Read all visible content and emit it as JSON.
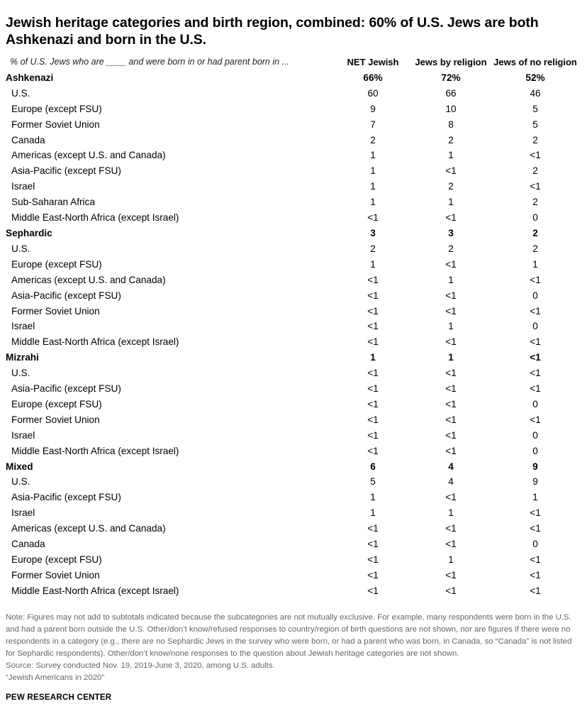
{
  "title": "Jewish heritage categories and birth region, combined: 60% of U.S. Jews are both Ashkenazi and born in the U.S.",
  "chart_data": {
    "type": "table",
    "stub_header": "% of U.S. Jews who are ____ and were born in or had parent born in ...",
    "columns": [
      "NET Jewish",
      "Jews by religion",
      "Jews of no religion"
    ],
    "groups": [
      {
        "name": "Ashkenazi",
        "values": [
          "66%",
          "72%",
          "52%"
        ],
        "rows": [
          {
            "label": "U.S.",
            "values": [
              "60",
              "66",
              "46"
            ]
          },
          {
            "label": "Europe (except FSU)",
            "values": [
              "9",
              "10",
              "5"
            ]
          },
          {
            "label": "Former Soviet Union",
            "values": [
              "7",
              "8",
              "5"
            ]
          },
          {
            "label": "Canada",
            "values": [
              "2",
              "2",
              "2"
            ]
          },
          {
            "label": "Americas (except U.S. and Canada)",
            "values": [
              "1",
              "1",
              "<1"
            ]
          },
          {
            "label": "Asia-Pacific (except FSU)",
            "values": [
              "1",
              "<1",
              "2"
            ]
          },
          {
            "label": "Israel",
            "values": [
              "1",
              "2",
              "<1"
            ]
          },
          {
            "label": "Sub-Saharan Africa",
            "values": [
              "1",
              "1",
              "2"
            ]
          },
          {
            "label": "Middle East-North Africa (except Israel)",
            "values": [
              "<1",
              "<1",
              "0"
            ]
          }
        ]
      },
      {
        "name": "Sephardic",
        "values": [
          "3",
          "3",
          "2"
        ],
        "rows": [
          {
            "label": "U.S.",
            "values": [
              "2",
              "2",
              "2"
            ]
          },
          {
            "label": "Europe (except FSU)",
            "values": [
              "1",
              "<1",
              "1"
            ]
          },
          {
            "label": "Americas (except U.S. and Canada)",
            "values": [
              "<1",
              "1",
              "<1"
            ]
          },
          {
            "label": "Asia-Pacific (except FSU)",
            "values": [
              "<1",
              "<1",
              "0"
            ]
          },
          {
            "label": "Former Soviet Union",
            "values": [
              "<1",
              "<1",
              "<1"
            ]
          },
          {
            "label": "Israel",
            "values": [
              "<1",
              "1",
              "0"
            ]
          },
          {
            "label": "Middle East-North Africa (except Israel)",
            "values": [
              "<1",
              "<1",
              "<1"
            ]
          }
        ]
      },
      {
        "name": "Mizrahi",
        "values": [
          "1",
          "1",
          "<1"
        ],
        "rows": [
          {
            "label": "U.S.",
            "values": [
              "<1",
              "<1",
              "<1"
            ]
          },
          {
            "label": "Asia-Pacific (except FSU)",
            "values": [
              "<1",
              "<1",
              "<1"
            ]
          },
          {
            "label": "Europe (except FSU)",
            "values": [
              "<1",
              "<1",
              "0"
            ]
          },
          {
            "label": "Former Soviet Union",
            "values": [
              "<1",
              "<1",
              "<1"
            ]
          },
          {
            "label": "Israel",
            "values": [
              "<1",
              "<1",
              "0"
            ]
          },
          {
            "label": "Middle East-North Africa (except Israel)",
            "values": [
              "<1",
              "<1",
              "0"
            ]
          }
        ]
      },
      {
        "name": "Mixed",
        "values": [
          "6",
          "4",
          "9"
        ],
        "rows": [
          {
            "label": "U.S.",
            "values": [
              "5",
              "4",
              "9"
            ]
          },
          {
            "label": "Asia-Pacific (except FSU)",
            "values": [
              "1",
              "<1",
              "1"
            ]
          },
          {
            "label": "Israel",
            "values": [
              "1",
              "1",
              "<1"
            ]
          },
          {
            "label": "Americas (except U.S. and Canada)",
            "values": [
              "<1",
              "<1",
              "<1"
            ]
          },
          {
            "label": "Canada",
            "values": [
              "<1",
              "<1",
              "0"
            ]
          },
          {
            "label": "Europe (except FSU)",
            "values": [
              "<1",
              "1",
              "<1"
            ]
          },
          {
            "label": "Former Soviet Union",
            "values": [
              "<1",
              "<1",
              "<1"
            ]
          },
          {
            "label": "Middle East-North Africa (except Israel)",
            "values": [
              "<1",
              "<1",
              "<1"
            ]
          }
        ]
      }
    ]
  },
  "notes": {
    "note": "Note: Figures may not add to subtotals indicated because the subcategories are not mutually exclusive. For example, many respondents were born in the U.S. and had a parent born outside the U.S. Other/don’t know/refused responses to country/region of birth questions are not shown, nor are figures if there were no respondents in a category (e.g., there are no Sephardic Jews in the survey who were born, or had a parent who was born, in Canada, so “Canada” is not listed for Sephardic respondents). Other/don’t know/none responses to the question about Jewish heritage categories are not shown.",
    "source": "Source: Survey conducted Nov. 19, 2019-June 3, 2020, among U.S. adults.",
    "report": "“Jewish Americans in 2020”"
  },
  "credit": "PEW RESEARCH CENTER"
}
